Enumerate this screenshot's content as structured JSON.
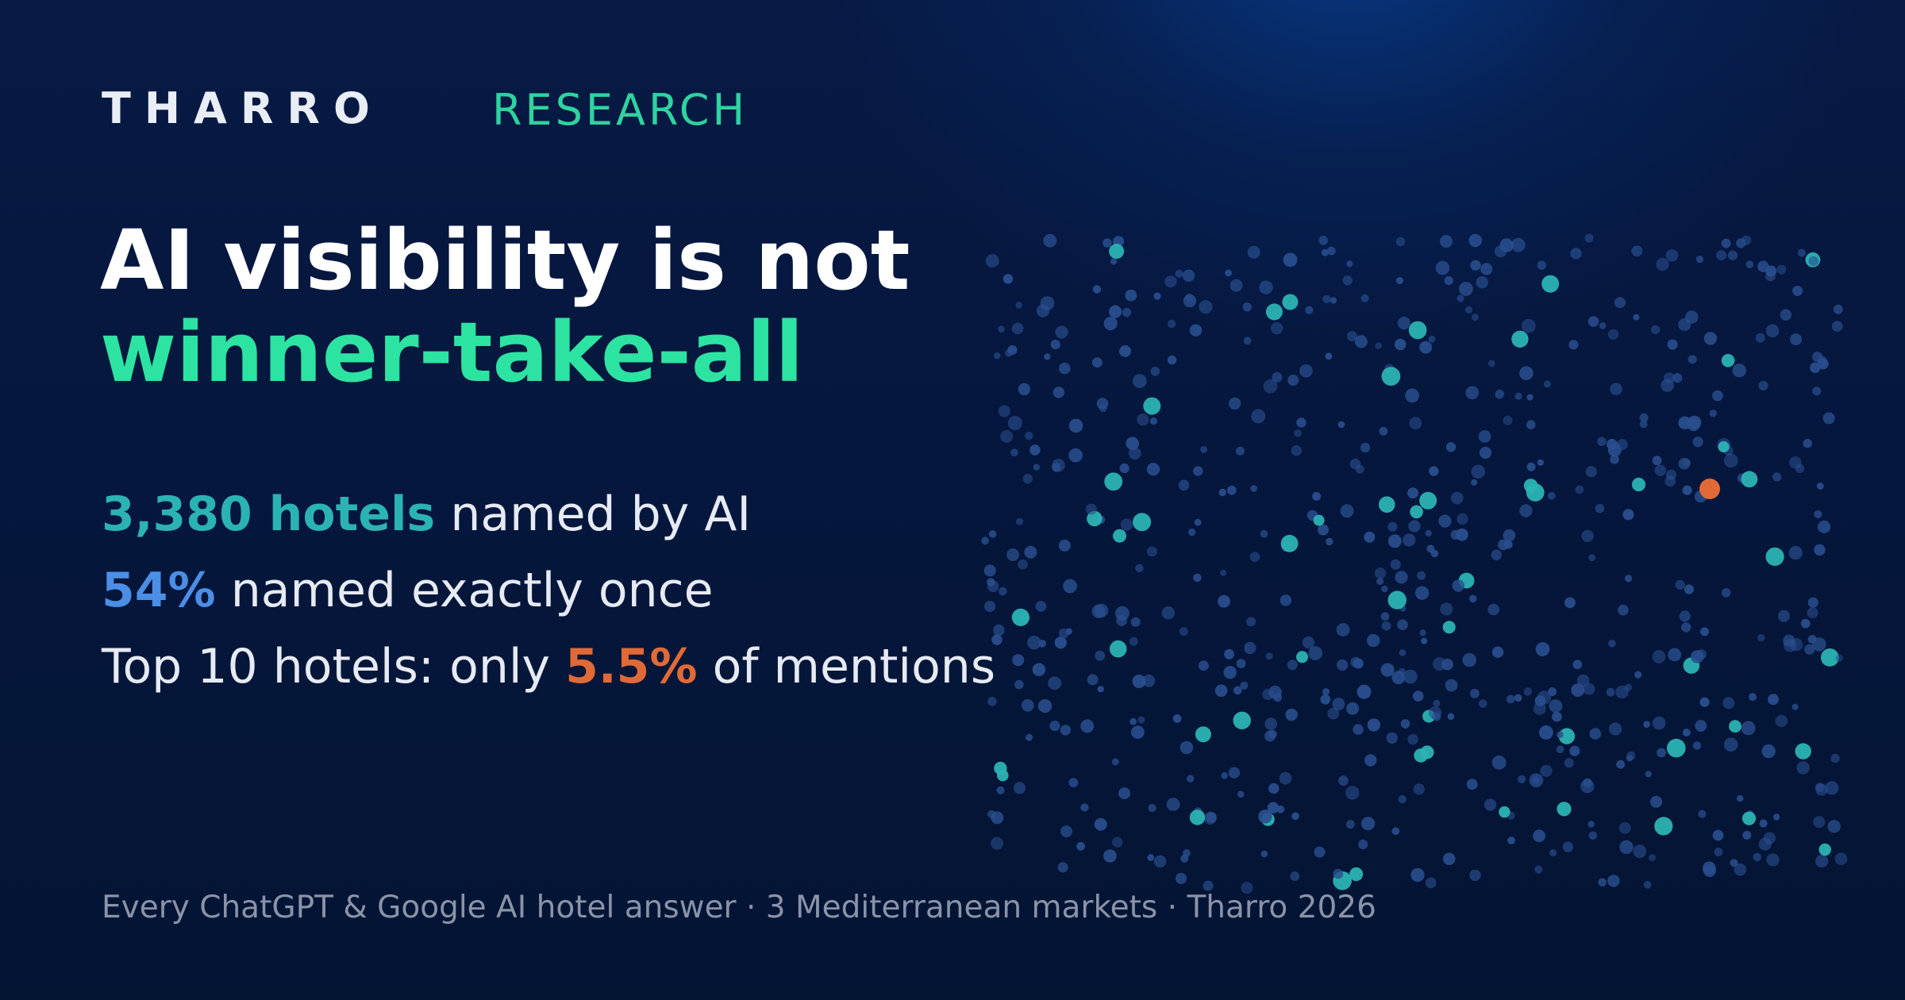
{
  "brand": {
    "name": "THARRO",
    "section": "RESEARCH"
  },
  "headline": {
    "line1": "AI visibility is not",
    "line2": "winner-take-all"
  },
  "stats": [
    {
      "highlight": "3,380 hotels",
      "prefix": "",
      "suffix": " named by AI"
    },
    {
      "highlight": "54%",
      "prefix": "",
      "suffix": " named exactly once"
    },
    {
      "highlight": "5.5%",
      "prefix": "Top 10 hotels: only ",
      "suffix": " of mentions"
    }
  ],
  "footer": "Every ChatGPT & Google AI hotel answer · 3 Mediterranean markets · Tharro 2026",
  "colors": {
    "background": "#05173d",
    "accent_green": "#2de3a2",
    "teal": "#2bb3b3",
    "blue": "#4b8ee6",
    "orange": "#e06a37",
    "dot_dim": "#2a4f8f"
  },
  "dot_field": {
    "highlight_fraction": 0.08,
    "single_orange_dot": true
  }
}
